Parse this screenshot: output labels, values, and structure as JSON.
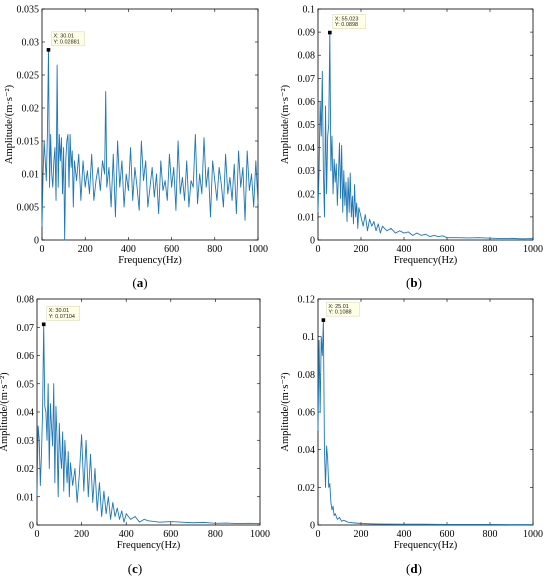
{
  "style": {
    "line_color": "#1f77b4",
    "axis_color": "#000000",
    "tooltip_bg": "#ffffe6",
    "tooltip_border": "#c8c8a0"
  },
  "chart_data": [
    {
      "id": "a",
      "type": "line",
      "caption": {
        "open": "(",
        "letter": "a",
        "close": ")"
      },
      "xlabel": "Frequency(Hz)",
      "ylabel": "Amplitude/(m·s⁻²)",
      "xlim": [
        0,
        1000
      ],
      "ylim": [
        0,
        0.035
      ],
      "xticks": [
        0,
        200,
        400,
        600,
        800,
        1000
      ],
      "xtick_labels": [
        "0",
        "200",
        "400",
        "600",
        "800",
        "1000"
      ],
      "yticks": [
        0,
        0.005,
        0.01,
        0.015,
        0.02,
        0.025,
        0.03,
        0.035
      ],
      "ytick_labels": [
        "0",
        "0.005",
        "0.01",
        "0.015",
        "0.02",
        "0.025",
        "0.03",
        "0.035"
      ],
      "datatip": {
        "x": 30.01,
        "y": 0.02881,
        "x_text": "X: 30.01",
        "y_text": "Y: 0.02881"
      },
      "series": [
        {
          "x": [
            0,
            5,
            10,
            15,
            20,
            25,
            30,
            35,
            40,
            45,
            50,
            55,
            60,
            65,
            70,
            75,
            80,
            85,
            90,
            95,
            100,
            105,
            110,
            115,
            120,
            125,
            130,
            135,
            140,
            145,
            150,
            160,
            170,
            180,
            190,
            200,
            210,
            220,
            230,
            240,
            250,
            260,
            270,
            280,
            290,
            295,
            300,
            310,
            320,
            330,
            340,
            350,
            360,
            370,
            380,
            390,
            400,
            410,
            420,
            430,
            440,
            450,
            460,
            470,
            480,
            490,
            500,
            510,
            520,
            530,
            540,
            550,
            560,
            570,
            580,
            590,
            600,
            610,
            620,
            630,
            640,
            650,
            660,
            670,
            680,
            690,
            700,
            710,
            720,
            730,
            740,
            750,
            760,
            770,
            780,
            790,
            800,
            810,
            820,
            830,
            840,
            850,
            860,
            870,
            880,
            890,
            900,
            910,
            920,
            930,
            940,
            950,
            960,
            970,
            980,
            990,
            1000
          ],
          "values": [
            0.002,
            0.01,
            0.015,
            0.012,
            0.009,
            0.016,
            0.02881,
            0.008,
            0.016,
            0.01,
            0.008,
            0.012,
            0.014,
            0.006,
            0.0265,
            0.008,
            0.016,
            0.012,
            0.0155,
            0.007,
            0.014,
            0.0,
            0.012,
            0.015,
            0.016,
            0.008,
            0.016,
            0.011,
            0.0135,
            0.005,
            0.012,
            0.009,
            0.013,
            0.006,
            0.012,
            0.008,
            0.0105,
            0.007,
            0.013,
            0.006,
            0.009,
            0.011,
            0.0075,
            0.012,
            0.01,
            0.0225,
            0.008,
            0.011,
            0.005,
            0.013,
            0.0035,
            0.015,
            0.008,
            0.012,
            0.005,
            0.01,
            0.0075,
            0.014,
            0.006,
            0.011,
            0.008,
            0.0045,
            0.015,
            0.009,
            0.012,
            0.005,
            0.008,
            0.011,
            0.0065,
            0.01,
            0.004,
            0.012,
            0.0075,
            0.009,
            0.006,
            0.013,
            0.008,
            0.011,
            0.0045,
            0.015,
            0.007,
            0.0095,
            0.006,
            0.012,
            0.005,
            0.009,
            0.008,
            0.016,
            0.0055,
            0.01,
            0.007,
            0.0155,
            0.008,
            0.011,
            0.0035,
            0.012,
            0.009,
            0.006,
            0.011,
            0.0085,
            0.005,
            0.013,
            0.007,
            0.0095,
            0.006,
            0.0115,
            0.004,
            0.0135,
            0.008,
            0.011,
            0.003,
            0.0135,
            0.0075,
            0.01,
            0.005,
            0.012,
            0.0055
          ]
        }
      ]
    },
    {
      "id": "b",
      "type": "line",
      "caption": {
        "open": "(",
        "letter": "b",
        "close": ")"
      },
      "xlabel": "Frequency(Hz)",
      "ylabel": "Amplitude/(m·s⁻²)",
      "xlim": [
        0,
        1000
      ],
      "ylim": [
        0,
        0.1
      ],
      "xticks": [
        0,
        200,
        400,
        600,
        800,
        1000
      ],
      "xtick_labels": [
        "0",
        "200",
        "400",
        "600",
        "800",
        "1000"
      ],
      "yticks": [
        0,
        0.01,
        0.02,
        0.03,
        0.04,
        0.05,
        0.06,
        0.07,
        0.08,
        0.09,
        0.1
      ],
      "ytick_labels": [
        "0",
        "0.01",
        "0.02",
        "0.03",
        "0.04",
        "0.05",
        "0.06",
        "0.07",
        "0.08",
        "0.09",
        "0.1"
      ],
      "datatip": {
        "x": 55.023,
        "y": 0.0898,
        "x_text": "X: 55.023",
        "y_text": "Y: 0.0898"
      },
      "series": [
        {
          "x": [
            0,
            5,
            10,
            15,
            20,
            25,
            30,
            35,
            40,
            45,
            50,
            55,
            60,
            65,
            70,
            75,
            80,
            85,
            90,
            95,
            100,
            105,
            110,
            115,
            120,
            125,
            130,
            135,
            140,
            145,
            150,
            155,
            160,
            165,
            170,
            175,
            180,
            185,
            190,
            195,
            200,
            210,
            220,
            230,
            240,
            250,
            260,
            270,
            280,
            290,
            300,
            320,
            340,
            360,
            380,
            400,
            420,
            440,
            460,
            480,
            500,
            520,
            540,
            560,
            580,
            600,
            650,
            700,
            750,
            800,
            850,
            900,
            950,
            1000
          ],
          "values": [
            0.012,
            0.03,
            0.06,
            0.045,
            0.073,
            0.03,
            0.01,
            0.058,
            0.02,
            0.045,
            0.05,
            0.0898,
            0.03,
            0.045,
            0.02,
            0.035,
            0.025,
            0.033,
            0.015,
            0.028,
            0.042,
            0.018,
            0.041,
            0.012,
            0.03,
            0.015,
            0.025,
            0.008,
            0.027,
            0.012,
            0.029,
            0.01,
            0.019,
            0.007,
            0.024,
            0.01,
            0.016,
            0.005,
            0.014,
            0.012,
            0.01,
            0.006,
            0.011,
            0.004,
            0.009,
            0.006,
            0.008,
            0.004,
            0.007,
            0.003,
            0.006,
            0.004,
            0.005,
            0.003,
            0.004,
            0.003,
            0.0035,
            0.002,
            0.003,
            0.002,
            0.0025,
            0.0015,
            0.002,
            0.0015,
            0.0018,
            0.001,
            0.001,
            0.0009,
            0.001,
            0.0008,
            0.0006,
            0.0007,
            0.0005,
            0.0006
          ]
        }
      ]
    },
    {
      "id": "c",
      "type": "line",
      "caption": {
        "open": "(",
        "letter": "c",
        "close": ")"
      },
      "xlabel": "Frequency(Hz)",
      "ylabel": "Amplitude/(m·s⁻²)",
      "xlim": [
        0,
        1000
      ],
      "ylim": [
        0,
        0.08
      ],
      "xticks": [
        0,
        200,
        400,
        600,
        800,
        1000
      ],
      "xtick_labels": [
        "0",
        "200",
        "400",
        "600",
        "800",
        "1000"
      ],
      "yticks": [
        0,
        0.01,
        0.02,
        0.03,
        0.04,
        0.05,
        0.06,
        0.07,
        0.08
      ],
      "ytick_labels": [
        "0",
        "0.01",
        "0.02",
        "0.03",
        "0.04",
        "0.05",
        "0.06",
        "0.07",
        "0.08"
      ],
      "datatip": {
        "x": 30.01,
        "y": 0.07104,
        "x_text": "X: 30.01",
        "y_text": "Y: 0.07104"
      },
      "series": [
        {
          "x": [
            0,
            5,
            10,
            15,
            20,
            25,
            30,
            35,
            40,
            45,
            50,
            55,
            60,
            65,
            70,
            75,
            80,
            85,
            90,
            95,
            100,
            105,
            110,
            115,
            120,
            125,
            130,
            135,
            140,
            145,
            150,
            160,
            170,
            180,
            190,
            200,
            210,
            220,
            230,
            240,
            250,
            260,
            270,
            280,
            290,
            300,
            310,
            320,
            330,
            340,
            350,
            360,
            370,
            380,
            390,
            400,
            420,
            440,
            460,
            480,
            500,
            550,
            600,
            650,
            700,
            750,
            800,
            850,
            900,
            950,
            1000
          ],
          "values": [
            0.01,
            0.035,
            0.03,
            0.014,
            0.025,
            0.04,
            0.07104,
            0.042,
            0.04,
            0.03,
            0.05,
            0.02,
            0.043,
            0.035,
            0.028,
            0.05,
            0.015,
            0.042,
            0.03,
            0.01,
            0.036,
            0.025,
            0.02,
            0.033,
            0.012,
            0.03,
            0.022,
            0.015,
            0.026,
            0.01,
            0.022,
            0.014,
            0.02,
            0.008,
            0.018,
            0.032,
            0.012,
            0.03,
            0.01,
            0.025,
            0.008,
            0.02,
            0.005,
            0.015,
            0.003,
            0.012,
            0.004,
            0.01,
            0.002,
            0.008,
            0.003,
            0.006,
            0.002,
            0.005,
            0.001,
            0.004,
            0.002,
            0.003,
            0.001,
            0.002,
            0.0015,
            0.001,
            0.0012,
            0.001,
            0.0008,
            0.0009,
            0.0006,
            0.0007,
            0.0005,
            0.0006,
            0.0005
          ]
        }
      ]
    },
    {
      "id": "d",
      "type": "line",
      "caption": {
        "open": "(",
        "letter": "d",
        "close": ")"
      },
      "xlabel": "Frequency(Hz)",
      "ylabel": "Amplitude/(m·s⁻²)",
      "xlim": [
        0,
        1000
      ],
      "ylim": [
        0,
        0.12
      ],
      "xticks": [
        0,
        200,
        400,
        600,
        800,
        1000
      ],
      "xtick_labels": [
        "0",
        "200",
        "400",
        "600",
        "800",
        "1000"
      ],
      "yticks": [
        0,
        0.02,
        0.04,
        0.06,
        0.08,
        0.1,
        0.12
      ],
      "ytick_labels": [
        "0",
        "0.02",
        "0.04",
        "0.06",
        "0.08",
        "0.1",
        "0.12"
      ],
      "datatip": {
        "x": 25.01,
        "y": 0.1088,
        "x_text": "X: 25.01",
        "y_text": "Y: 0.1088"
      },
      "series": [
        {
          "x": [
            0,
            5,
            10,
            15,
            20,
            25,
            30,
            35,
            40,
            45,
            50,
            55,
            60,
            65,
            70,
            75,
            80,
            90,
            100,
            110,
            120,
            140,
            160,
            180,
            200,
            250,
            300,
            400,
            500,
            600,
            700,
            800,
            900,
            1000
          ],
          "values": [
            0.05,
            0.098,
            0.06,
            0.1,
            0.09,
            0.1088,
            0.04,
            0.02,
            0.042,
            0.035,
            0.02,
            0.022,
            0.012,
            0.008,
            0.01,
            0.005,
            0.006,
            0.003,
            0.004,
            0.002,
            0.0025,
            0.0015,
            0.0012,
            0.001,
            0.0008,
            0.0006,
            0.0005,
            0.0004,
            0.0004,
            0.0003,
            0.0003,
            0.0003,
            0.0002,
            0.0002
          ]
        }
      ]
    }
  ]
}
